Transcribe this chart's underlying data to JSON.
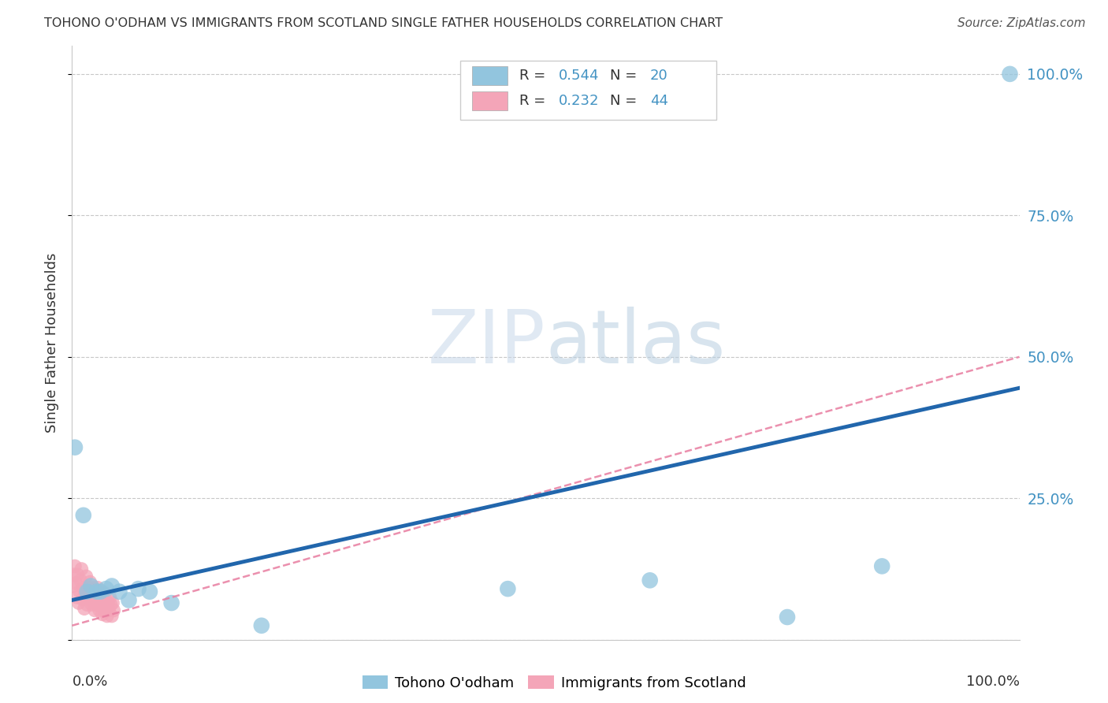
{
  "title": "TOHONO O'ODHAM VS IMMIGRANTS FROM SCOTLAND SINGLE FATHER HOUSEHOLDS CORRELATION CHART",
  "source": "Source: ZipAtlas.com",
  "ylabel": "Single Father Households",
  "background_color": "#ffffff",
  "watermark_zip": "ZIP",
  "watermark_atlas": "atlas",
  "color_blue": "#92c5de",
  "color_pink": "#f4a5b8",
  "color_blue_dark": "#2166ac",
  "color_pink_line": "#e87da0",
  "color_blue_text": "#4393c3",
  "color_right_tick": "#4393c3",
  "blue_points": [
    [
      0.003,
      0.34
    ],
    [
      0.012,
      0.22
    ],
    [
      0.016,
      0.085
    ],
    [
      0.02,
      0.095
    ],
    [
      0.026,
      0.085
    ],
    [
      0.03,
      0.085
    ],
    [
      0.036,
      0.09
    ],
    [
      0.042,
      0.095
    ],
    [
      0.05,
      0.085
    ],
    [
      0.06,
      0.07
    ],
    [
      0.07,
      0.09
    ],
    [
      0.082,
      0.085
    ],
    [
      0.105,
      0.065
    ],
    [
      0.2,
      0.025
    ],
    [
      0.46,
      0.09
    ],
    [
      0.61,
      0.105
    ],
    [
      0.755,
      0.04
    ],
    [
      0.855,
      0.13
    ],
    [
      0.99,
      1.0
    ]
  ],
  "pink_points": [
    [
      0.001,
      0.095
    ],
    [
      0.002,
      0.115
    ],
    [
      0.003,
      0.13
    ],
    [
      0.004,
      0.1
    ],
    [
      0.005,
      0.075
    ],
    [
      0.006,
      0.115
    ],
    [
      0.007,
      0.065
    ],
    [
      0.008,
      0.085
    ],
    [
      0.009,
      0.105
    ],
    [
      0.01,
      0.125
    ],
    [
      0.011,
      0.072
    ],
    [
      0.012,
      0.092
    ],
    [
      0.013,
      0.055
    ],
    [
      0.014,
      0.082
    ],
    [
      0.015,
      0.112
    ],
    [
      0.016,
      0.062
    ],
    [
      0.017,
      0.092
    ],
    [
      0.018,
      0.072
    ],
    [
      0.019,
      0.102
    ],
    [
      0.02,
      0.082
    ],
    [
      0.021,
      0.062
    ],
    [
      0.022,
      0.092
    ],
    [
      0.023,
      0.072
    ],
    [
      0.024,
      0.052
    ],
    [
      0.025,
      0.082
    ],
    [
      0.026,
      0.062
    ],
    [
      0.027,
      0.092
    ],
    [
      0.028,
      0.072
    ],
    [
      0.029,
      0.052
    ],
    [
      0.03,
      0.072
    ],
    [
      0.031,
      0.062
    ],
    [
      0.032,
      0.045
    ],
    [
      0.033,
      0.072
    ],
    [
      0.034,
      0.052
    ],
    [
      0.035,
      0.082
    ],
    [
      0.036,
      0.062
    ],
    [
      0.037,
      0.042
    ],
    [
      0.038,
      0.065
    ],
    [
      0.039,
      0.052
    ],
    [
      0.04,
      0.075
    ],
    [
      0.041,
      0.062
    ],
    [
      0.042,
      0.042
    ],
    [
      0.043,
      0.065
    ],
    [
      0.044,
      0.052
    ]
  ],
  "blue_line": {
    "x0": 0.0,
    "x1": 1.0,
    "y0": 0.07,
    "y1": 0.445
  },
  "pink_line": {
    "x0": 0.0,
    "x1": 1.0,
    "y0": 0.025,
    "y1": 0.5
  },
  "ylim": [
    0,
    1.05
  ],
  "xlim": [
    0,
    1.0
  ],
  "yticks": [
    0.0,
    0.25,
    0.5,
    0.75,
    1.0
  ],
  "ytick_labels": [
    "",
    "25.0%",
    "50.0%",
    "75.0%",
    "100.0%"
  ],
  "xtick_labels_bottom": [
    "0.0%",
    "100.0%"
  ],
  "legend1_color": "#92c5de",
  "legend2_color": "#f4a5b8",
  "legend_text_color": "#333333",
  "legend_num_color": "#4393c3"
}
